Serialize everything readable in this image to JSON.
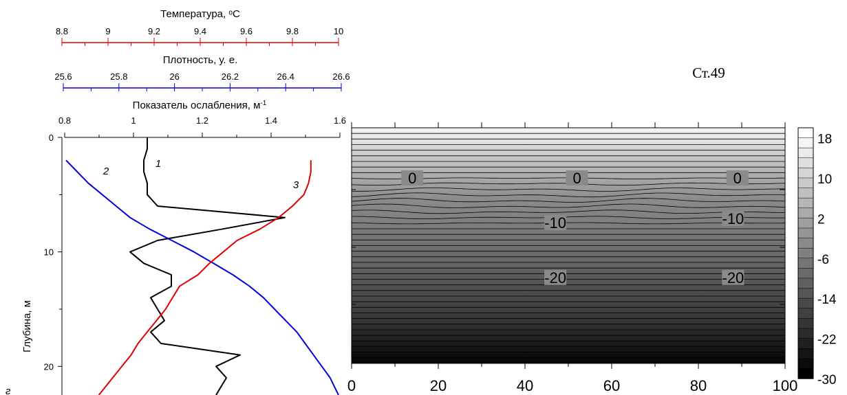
{
  "chart_data": [
    {
      "type": "line",
      "axes": [
        {
          "key": "temperature",
          "label": "Температура, ᵒС",
          "ticks": [
            8.8,
            9,
            9.2,
            9.4,
            9.6,
            9.8,
            10
          ],
          "tick_labels": [
            "8.8",
            "9",
            "9.2",
            "9.4",
            "9.6",
            "9.8",
            "10"
          ],
          "range": [
            8.8,
            10
          ],
          "color": "#e00000"
        },
        {
          "key": "density",
          "label": "Плотность, у. е.",
          "ticks": [
            25.6,
            25.8,
            26,
            26.2,
            26.4,
            26.6
          ],
          "tick_labels": [
            "25.6",
            "25.8",
            "26",
            "26.2",
            "26.4",
            "26.6"
          ],
          "range": [
            25.6,
            26.6
          ],
          "color": "#0000e0"
        },
        {
          "key": "attenuation",
          "label": "Показатель ослабления, м",
          "label_sup": "-1",
          "ticks": [
            0.8,
            1,
            1.2,
            1.4,
            1.6
          ],
          "tick_labels": [
            "0.8",
            "1",
            "1.2",
            "1.4",
            "1.6"
          ],
          "range": [
            0.8,
            1.6
          ],
          "color": "#000000"
        }
      ],
      "y_axis": {
        "label": "Глубина, м",
        "ticks": [
          0,
          10,
          20
        ],
        "tick_labels": [
          "0",
          "10",
          "20"
        ],
        "range": [
          0,
          22.5
        ],
        "inverted": true
      },
      "series": [
        {
          "name": "1",
          "axis": "attenuation",
          "color": "#000000",
          "points": [
            [
              1.04,
              0
            ],
            [
              1.04,
              1
            ],
            [
              1.03,
              2
            ],
            [
              1.03,
              3
            ],
            [
              1.04,
              4
            ],
            [
              1.04,
              5
            ],
            [
              1.07,
              6
            ],
            [
              1.44,
              7
            ],
            [
              1.26,
              8
            ],
            [
              1.07,
              9
            ],
            [
              0.99,
              10
            ],
            [
              1.03,
              11
            ],
            [
              1.11,
              12
            ],
            [
              1.11,
              13
            ],
            [
              1.05,
              14
            ],
            [
              1.07,
              15
            ],
            [
              1.09,
              16
            ],
            [
              1.05,
              17
            ],
            [
              1.08,
              18
            ],
            [
              1.31,
              19
            ],
            [
              1.24,
              20
            ],
            [
              1.27,
              21
            ],
            [
              1.25,
              22
            ],
            [
              1.24,
              22.5
            ]
          ]
        },
        {
          "name": "2",
          "axis": "density",
          "color": "#0000e0",
          "points": [
            [
              25.61,
              2
            ],
            [
              25.65,
              3
            ],
            [
              25.69,
              4
            ],
            [
              25.74,
              5
            ],
            [
              25.79,
              6
            ],
            [
              25.84,
              7
            ],
            [
              25.91,
              8
            ],
            [
              25.99,
              9
            ],
            [
              26.07,
              10
            ],
            [
              26.14,
              11
            ],
            [
              26.21,
              12
            ],
            [
              26.27,
              13
            ],
            [
              26.32,
              14
            ],
            [
              26.36,
              15
            ],
            [
              26.4,
              16
            ],
            [
              26.44,
              17
            ],
            [
              26.47,
              18
            ],
            [
              26.5,
              19
            ],
            [
              26.53,
              20
            ],
            [
              26.56,
              21
            ],
            [
              26.58,
              22
            ],
            [
              26.59,
              22.5
            ]
          ]
        },
        {
          "name": "3",
          "axis": "temperature",
          "color": "#e00000",
          "points": [
            [
              9.88,
              2
            ],
            [
              9.88,
              3
            ],
            [
              9.87,
              4
            ],
            [
              9.85,
              5
            ],
            [
              9.8,
              6
            ],
            [
              9.74,
              7
            ],
            [
              9.66,
              8
            ],
            [
              9.56,
              9
            ],
            [
              9.5,
              10
            ],
            [
              9.44,
              11
            ],
            [
              9.39,
              12
            ],
            [
              9.31,
              13
            ],
            [
              9.28,
              14
            ],
            [
              9.25,
              15
            ],
            [
              9.21,
              16
            ],
            [
              9.17,
              17
            ],
            [
              9.13,
              18
            ],
            [
              9.1,
              19
            ],
            [
              9.06,
              20
            ],
            [
              9.02,
              21
            ],
            [
              8.98,
              22
            ],
            [
              8.96,
              22.5
            ]
          ]
        }
      ],
      "corner_label": "г"
    },
    {
      "type": "heatmap",
      "title": "Ст.49",
      "x_ticks": [
        0,
        20,
        40,
        60,
        80,
        100
      ],
      "x_tick_labels": [
        "0",
        "20",
        "40",
        "60",
        "80",
        "100"
      ],
      "xlim": [
        0,
        100
      ],
      "value_range": [
        -30,
        20
      ],
      "colorbar_ticks": [
        18,
        10,
        2,
        -6,
        -14,
        -22,
        -30
      ],
      "colorbar_tick_labels": [
        "18",
        "10",
        "2",
        "-6",
        "-14",
        "-22",
        "-30"
      ],
      "contour_labels": [
        {
          "text": "0",
          "x": 14,
          "y": 5
        },
        {
          "text": "0",
          "x": 52,
          "y": 5
        },
        {
          "text": "0",
          "x": 89,
          "y": 5
        },
        {
          "text": "-10",
          "x": 47,
          "y": 9.4
        },
        {
          "text": "-10",
          "x": 88,
          "y": 9
        },
        {
          "text": "-20",
          "x": 47,
          "y": 14.8
        },
        {
          "text": "-20",
          "x": 88,
          "y": 14.8
        }
      ]
    }
  ]
}
